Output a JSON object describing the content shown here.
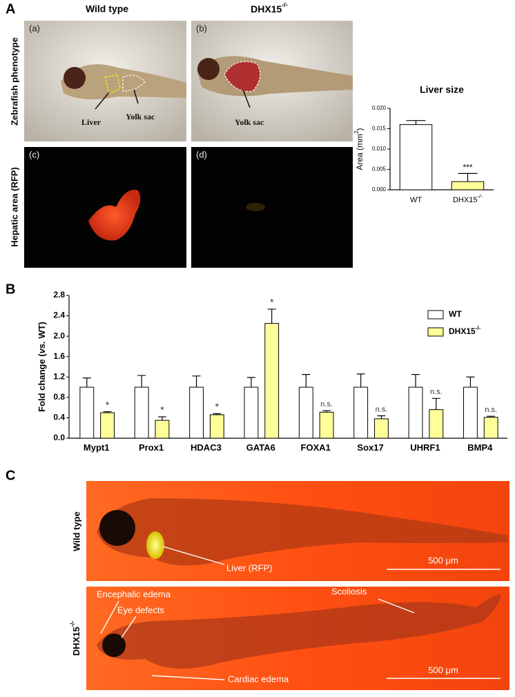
{
  "figure": {
    "panel_labels": [
      "A",
      "B",
      "C"
    ],
    "panel_a": {
      "column_titles": [
        {
          "text": "Wild type"
        },
        {
          "text": "DHX15",
          "sup": "-/-"
        }
      ],
      "row_titles": [
        "Zebrafish phenotype",
        "Hepatic area (RFP)"
      ],
      "image_labels": [
        "(a)",
        "(b)",
        "(c)",
        "(d)"
      ],
      "annotations": [
        "Liver",
        "Yolk sac",
        "Yolk sac"
      ]
    },
    "panel_c": {
      "row_titles": [
        {
          "text": "Wild type"
        },
        {
          "text": "DHX15",
          "sup": "-/-"
        }
      ],
      "annotations": [
        "Liver (RFP)",
        "Encephalic edema",
        "Eye defects",
        "Scoliosis",
        "Cardiac edema"
      ],
      "scale_bars": [
        "500 μm",
        "500 μm"
      ]
    }
  },
  "chart_data": [
    {
      "type": "bar",
      "title": "Liver size",
      "y_label": {
        "text": "Area (mm",
        "sup": "2",
        "after": ")"
      },
      "categories": [
        "WT",
        "DHX15"
      ],
      "category_superscripts": [
        null,
        "-/-"
      ],
      "values": [
        0.016,
        0.002
      ],
      "errors": [
        0.001,
        0.002
      ],
      "colors": [
        "#ffffff",
        "#ffff99"
      ],
      "annotation": {
        "text": "***",
        "category": 1
      },
      "ylim": [
        0,
        0.02
      ],
      "yticks": [
        {
          "value": 0,
          "label": "0.000"
        },
        {
          "value": 0.005,
          "label": "0.005"
        },
        {
          "value": 0.01,
          "label": "0.010"
        },
        {
          "value": 0.015,
          "label": "0.015"
        },
        {
          "value": 0.02,
          "label": "0.020"
        }
      ]
    },
    {
      "type": "bar",
      "y_label": {
        "text": "Fold change (",
        "italic": "vs.",
        "after": " WT)"
      },
      "categories": [
        "Mypt1",
        "Prox1",
        "HDAC3",
        "GATA6",
        "FOXA1",
        "Sox17",
        "UHRF1",
        "BMP4"
      ],
      "series": [
        {
          "name": "WT",
          "color": "#ffffff",
          "values": [
            1,
            1,
            1,
            1,
            1,
            1,
            1,
            1
          ],
          "errors": [
            0.18,
            0.23,
            0.22,
            0.19,
            0.25,
            0.26,
            0.25,
            0.2
          ]
        },
        {
          "name": "DHX15",
          "name_sup": "-/-",
          "color": "#ffff99",
          "values": [
            0.5,
            0.35,
            0.46,
            2.25,
            0.51,
            0.38,
            0.56,
            0.41
          ],
          "errors": [
            0.02,
            0.07,
            0.02,
            0.28,
            0.03,
            0.06,
            0.22,
            0.02
          ],
          "annotations": [
            "*",
            "*",
            "*",
            "*",
            "n.s.",
            "n.s.",
            "n.s.",
            "n.s."
          ]
        }
      ],
      "legend": "upper right",
      "ylim": [
        0,
        2.8
      ],
      "yticks": [
        {
          "value": 0,
          "label": "0.0"
        },
        0.4,
        0.8,
        1.2,
        1.6,
        {
          "value": 2,
          "label": "2.0"
        },
        2.4,
        2.8
      ]
    }
  ]
}
